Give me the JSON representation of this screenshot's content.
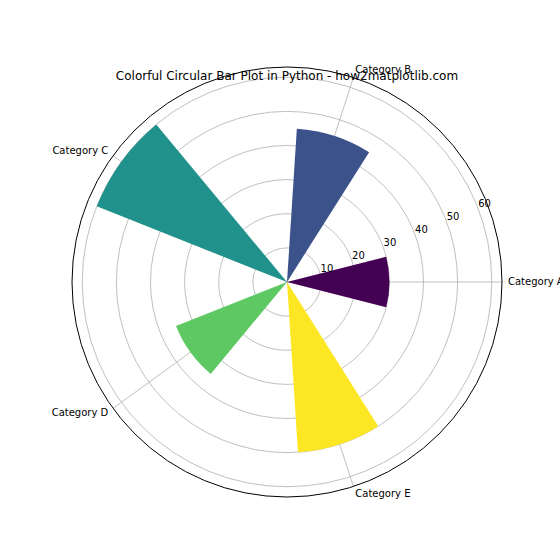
{
  "chart_data": {
    "type": "polar_bar",
    "title": "Colorful Circular Bar Plot in Python - how2matplotlib.com",
    "categories": [
      "Category A",
      "Category B",
      "Category C",
      "Category D",
      "Category E"
    ],
    "values": [
      30,
      45,
      60,
      35,
      50
    ],
    "colors": [
      "#440154",
      "#3b528b",
      "#21918c",
      "#5ec962",
      "#fde725"
    ],
    "ylim": [
      0,
      63
    ],
    "yticks": [
      10,
      20,
      30,
      40,
      50,
      60
    ],
    "grid": true
  }
}
